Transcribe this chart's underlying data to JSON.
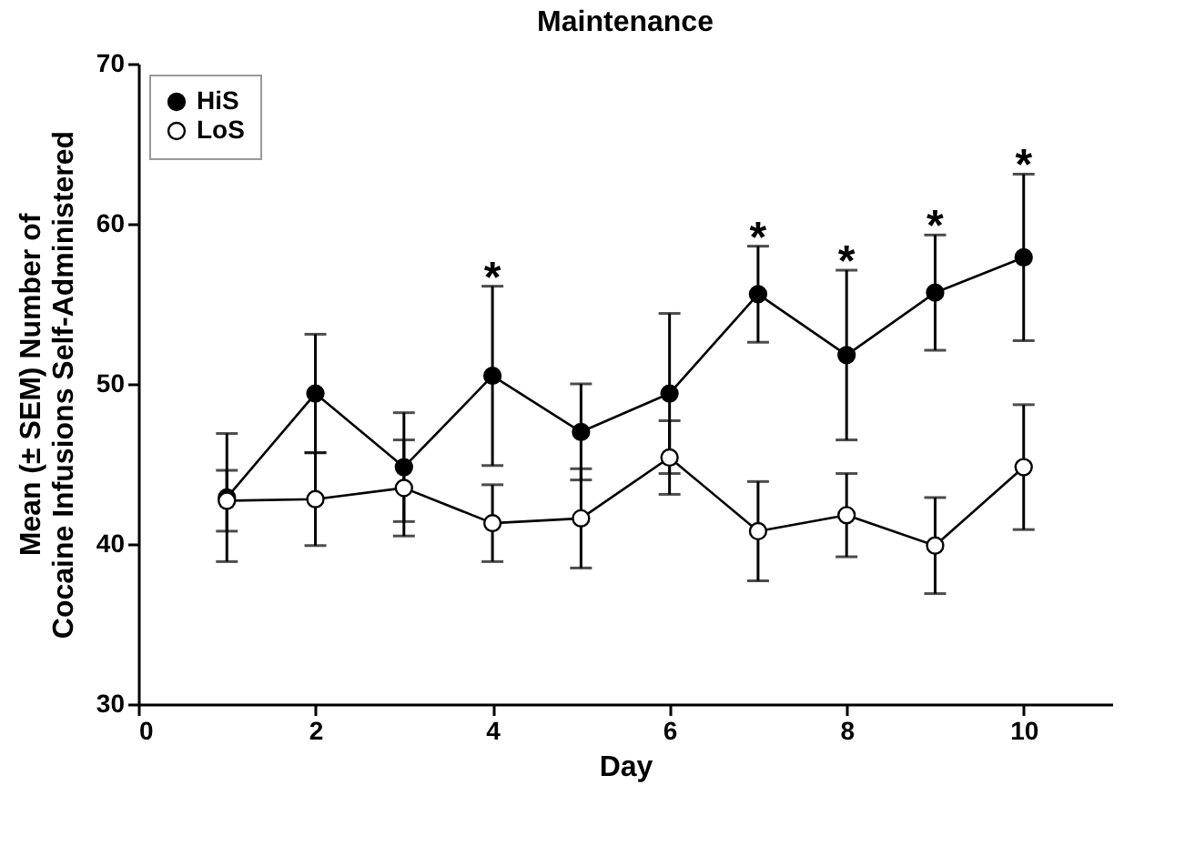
{
  "chart_data": {
    "type": "line",
    "title": "Maintenance",
    "xlabel": "Day",
    "ylabel": "Mean (± SEM) Number of\nCocaine Infusions Self-Administered",
    "x": [
      1,
      2,
      3,
      4,
      5,
      6,
      7,
      8,
      9,
      10
    ],
    "series": [
      {
        "name": "HiS",
        "color": "#000000",
        "values": [
          42.9,
          49.4,
          44.8,
          50.5,
          47.0,
          49.4,
          55.6,
          51.8,
          55.7,
          57.9
        ],
        "errors": [
          4.0,
          3.7,
          3.4,
          5.6,
          3.0,
          5.0,
          3.0,
          5.3,
          3.6,
          5.2
        ]
      },
      {
        "name": "LoS",
        "color": "#ffffff",
        "values": [
          42.7,
          42.8,
          43.5,
          41.3,
          41.6,
          45.4,
          40.8,
          41.8,
          39.9,
          44.8
        ],
        "errors": [
          1.9,
          2.9,
          3.0,
          2.4,
          3.1,
          2.3,
          3.1,
          2.6,
          3.0,
          3.9
        ]
      }
    ],
    "annotations": [
      {
        "text": "*",
        "x": 4,
        "y": 50.5
      },
      {
        "text": "*",
        "x": 7,
        "y": 55.6
      },
      {
        "text": "*",
        "x": 8,
        "y": 51.8
      },
      {
        "text": "*",
        "x": 9,
        "y": 55.7
      },
      {
        "text": "*",
        "x": 10,
        "y": 57.9
      }
    ],
    "xlim": [
      0,
      11
    ],
    "xticks": [
      0,
      2,
      4,
      6,
      8,
      10
    ],
    "ylim": [
      30,
      70
    ],
    "yticks": [
      30,
      40,
      50,
      60,
      70
    ],
    "grid": false,
    "legend": "top left",
    "marker": "circle",
    "line_style": "solid"
  }
}
